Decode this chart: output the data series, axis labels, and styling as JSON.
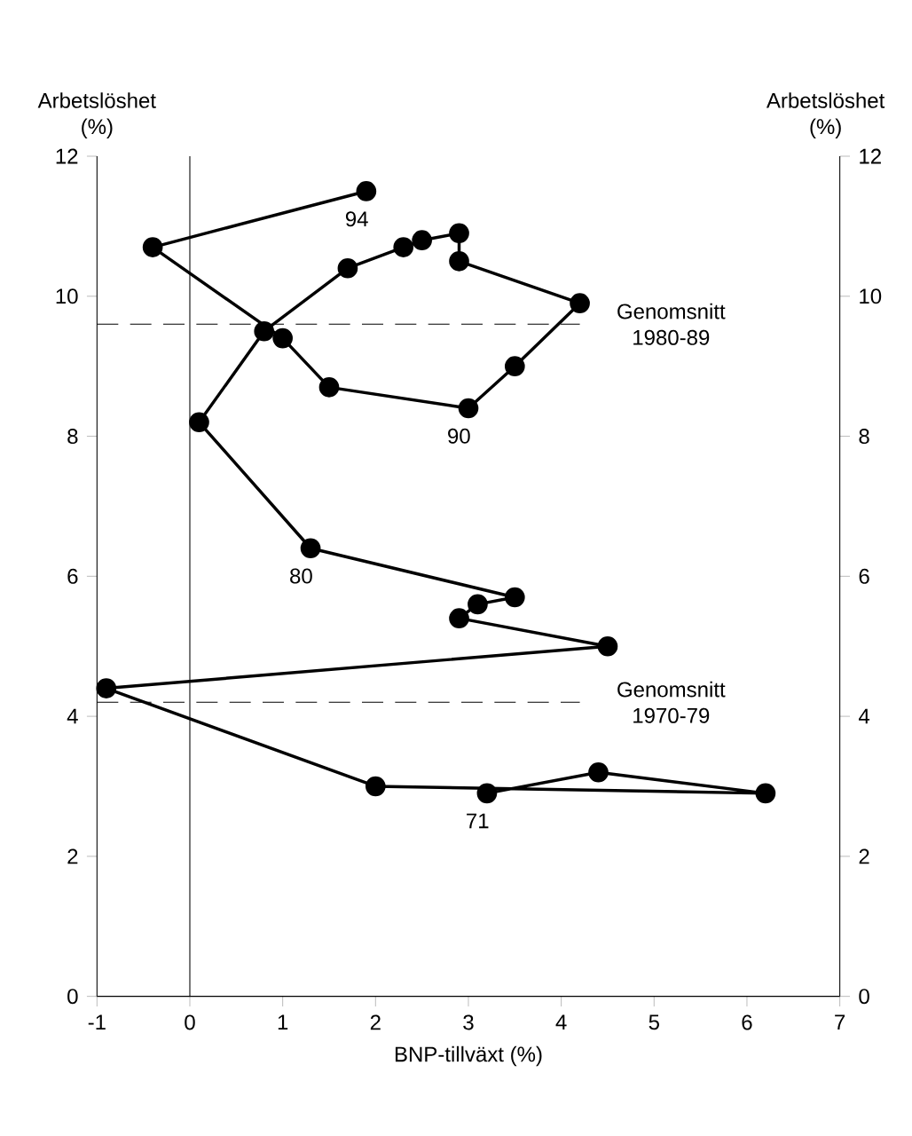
{
  "chart_data": {
    "type": "line",
    "xlabel": "BNP-tillväxt (%)",
    "ylabel": "Arbetslöshet (%)",
    "y2label": "Arbetslöshet (%)",
    "x": [
      3.2,
      4.4,
      6.2,
      2.0,
      -0.9,
      4.5,
      2.9,
      3.1,
      3.5,
      1.3,
      0.1,
      0.8,
      1.7,
      2.3,
      2.5,
      2.9,
      2.9,
      4.2,
      3.5,
      3.0,
      1.5,
      1.0,
      -0.4,
      1.9
    ],
    "values": [
      2.9,
      3.2,
      2.9,
      3.0,
      4.4,
      5.0,
      5.4,
      5.6,
      5.7,
      6.4,
      8.2,
      9.5,
      10.4,
      10.7,
      10.8,
      10.9,
      10.5,
      9.9,
      9.0,
      8.4,
      8.7,
      9.4,
      10.7,
      11.5
    ],
    "color": "#000000",
    "marker": "circle",
    "line_style": "solid",
    "xlim": [
      -1,
      7
    ],
    "xticks": [
      -1,
      0,
      1,
      2,
      3,
      4,
      5,
      6,
      7
    ],
    "ylim": [
      0,
      12
    ],
    "yticks": [
      0,
      2,
      4,
      6,
      8,
      10,
      12
    ],
    "y2lim": [
      0,
      12
    ],
    "y2ticks": [
      0,
      2,
      4,
      6,
      8,
      10,
      12
    ],
    "ref_lines": [
      {
        "axis": "y",
        "value": 9.6,
        "label": "Genomsnitt 1980-89",
        "line_style": "dashed"
      },
      {
        "axis": "y",
        "value": 4.2,
        "label": "Genomsnitt 1970-79",
        "line_style": "dashed"
      },
      {
        "axis": "x",
        "value": 0,
        "line_style": "solid"
      }
    ],
    "annotations": [
      {
        "text": "94",
        "x": 1.9,
        "y": 11.5
      },
      {
        "text": "90",
        "x": 3.0,
        "y": 8.4
      },
      {
        "text": "80",
        "x": 1.3,
        "y": 6.4
      },
      {
        "text": "71",
        "x": 3.2,
        "y": 2.9
      }
    ]
  }
}
